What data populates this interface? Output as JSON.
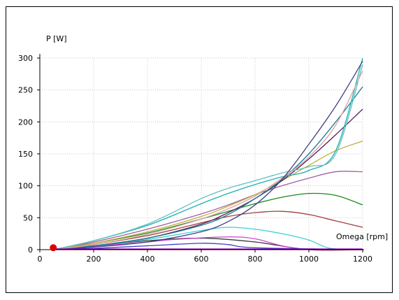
{
  "chart_data": {
    "type": "line",
    "title": "",
    "xlabel": "Omega [rpm]",
    "ylabel": "P [W]",
    "xlim": [
      0,
      1200
    ],
    "ylim": [
      0,
      300
    ],
    "xticks": [
      "0",
      "200",
      "400",
      "600",
      "800",
      "1000",
      "1200"
    ],
    "yticks": [
      "0",
      "50",
      "100",
      "150",
      "200",
      "250",
      "300"
    ],
    "grid": true,
    "legend": "none",
    "marker": {
      "x": 50,
      "y": 3,
      "color": "#e00000"
    },
    "series": [
      {
        "color": "#3b3b3b",
        "x": [
          50,
          200,
          400,
          600,
          800,
          1000,
          1200
        ],
        "y": [
          0,
          6,
          14,
          18,
          12,
          0,
          0
        ]
      },
      {
        "color": "#d040d0",
        "x": [
          50,
          200,
          400,
          500,
          700,
          800,
          900,
          1000,
          1200
        ],
        "y": [
          0,
          5,
          12,
          16,
          20,
          17,
          6,
          0,
          0
        ]
      },
      {
        "color": "#40d0d0",
        "x": [
          50,
          200,
          400,
          600,
          700,
          800,
          900,
          1000,
          1080,
          1200
        ],
        "y": [
          0,
          6,
          16,
          30,
          35,
          32,
          25,
          15,
          2,
          0
        ]
      },
      {
        "color": "#a04040",
        "x": [
          50,
          200,
          400,
          600,
          700,
          800,
          900,
          1000,
          1100,
          1200
        ],
        "y": [
          0,
          8,
          22,
          42,
          52,
          58,
          60,
          55,
          45,
          35
        ]
      },
      {
        "color": "#1a8a1a",
        "x": [
          50,
          200,
          400,
          600,
          700,
          800,
          900,
          1000,
          1100,
          1200
        ],
        "y": [
          0,
          10,
          26,
          48,
          60,
          72,
          82,
          88,
          85,
          70
        ]
      },
      {
        "color": "#a060a0",
        "x": [
          50,
          200,
          400,
          600,
          700,
          800,
          900,
          1000,
          1100,
          1200
        ],
        "y": [
          0,
          12,
          32,
          56,
          70,
          86,
          100,
          112,
          122,
          122
        ]
      },
      {
        "color": "#c0b040",
        "x": [
          50,
          200,
          400,
          600,
          700,
          800,
          900,
          1000,
          1100,
          1200
        ],
        "y": [
          0,
          10,
          28,
          52,
          68,
          86,
          108,
          132,
          155,
          170
        ]
      },
      {
        "color": "#5a1a5a",
        "x": [
          50,
          200,
          400,
          600,
          700,
          800,
          900,
          1000,
          1100,
          1200
        ],
        "y": [
          0,
          6,
          18,
          40,
          58,
          80,
          108,
          142,
          180,
          220
        ]
      },
      {
        "color": "#1a7a9a",
        "x": [
          50,
          200,
          400,
          600,
          700,
          800,
          900,
          1000,
          1100,
          1200
        ],
        "y": [
          0,
          6,
          18,
          38,
          55,
          80,
          110,
          150,
          200,
          255
        ]
      },
      {
        "color": "#20b0b0",
        "x": [
          50,
          200,
          400,
          600,
          700,
          800,
          900,
          1000,
          1100,
          1200
        ],
        "y": [
          0,
          14,
          38,
          72,
          88,
          102,
          114,
          124,
          155,
          300
        ]
      },
      {
        "color": "#60c0c0",
        "x": [
          50,
          200,
          400,
          600,
          700,
          800,
          900,
          1000,
          1100,
          1200
        ],
        "y": [
          0,
          14,
          40,
          80,
          96,
          108,
          120,
          130,
          150,
          290
        ]
      },
      {
        "color": "#e0a0a0",
        "x": [
          50,
          200,
          400,
          600,
          700,
          800,
          900,
          1000,
          1100,
          1200
        ],
        "y": [
          0,
          8,
          24,
          48,
          64,
          84,
          112,
          145,
          195,
          280
        ]
      },
      {
        "color": "#404080",
        "x": [
          50,
          200,
          400,
          600,
          700,
          800,
          900,
          1000,
          1100,
          1200
        ],
        "y": [
          0,
          4,
          12,
          28,
          44,
          70,
          110,
          165,
          225,
          295
        ]
      },
      {
        "color": "#4040c0",
        "x": [
          50,
          200,
          400,
          600,
          700,
          800,
          1200
        ],
        "y": [
          0,
          2,
          6,
          10,
          8,
          3,
          0
        ]
      },
      {
        "color": "#e00000",
        "x": [
          50,
          1200
        ],
        "y": [
          0,
          0
        ]
      },
      {
        "color": "#c000c0",
        "x": [
          50,
          1200
        ],
        "y": [
          1,
          1
        ]
      },
      {
        "color": "#000080",
        "x": [
          50,
          1200
        ],
        "y": [
          0.5,
          0.5
        ]
      }
    ]
  }
}
